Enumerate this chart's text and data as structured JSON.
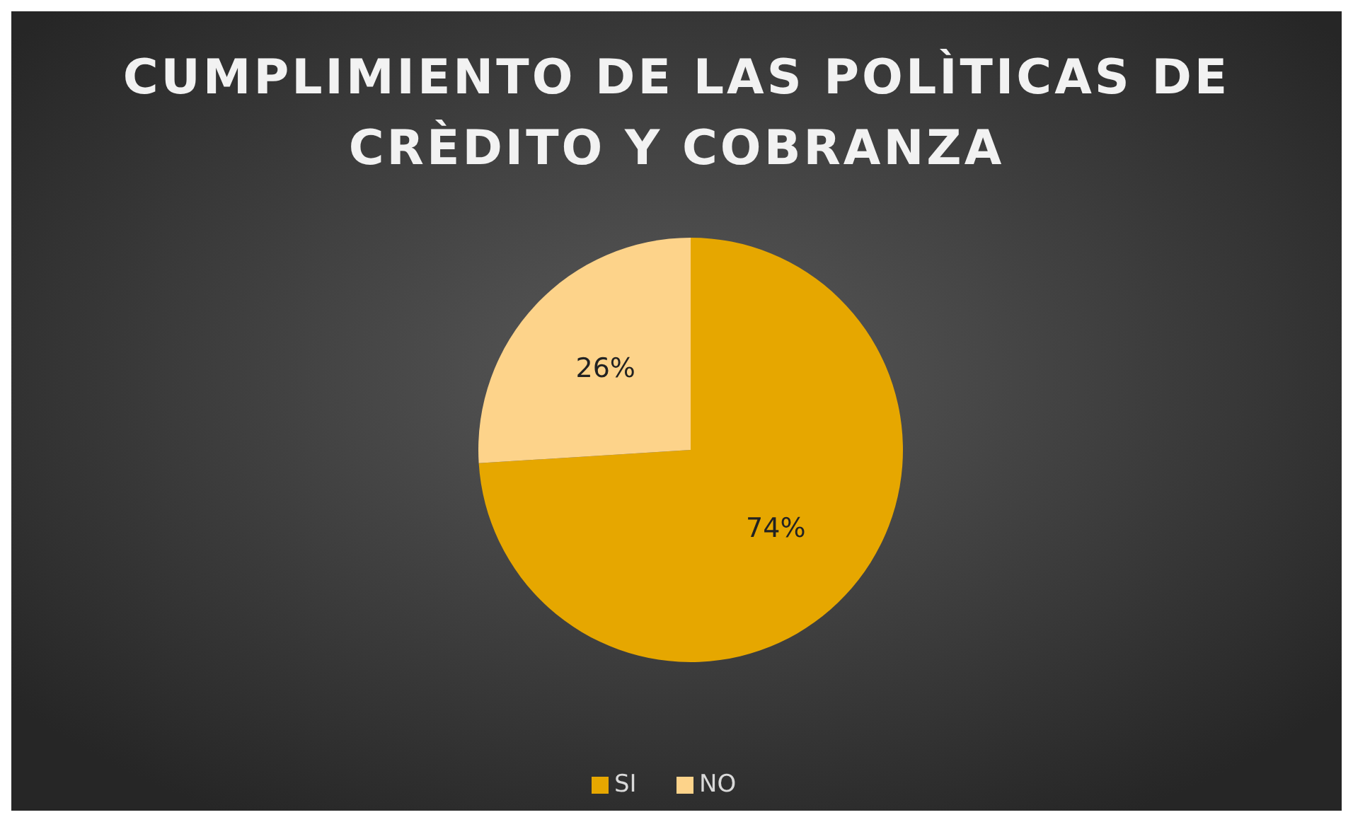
{
  "chart_data": {
    "type": "pie",
    "title": "CUMPLIMIENTO DE LAS POLÌTICAS DE CRÈDITO Y COBRANZA",
    "categories": [
      "SI",
      "NO"
    ],
    "values": [
      74,
      26
    ],
    "colors": [
      "#e6a700",
      "#fdd38a"
    ],
    "value_labels": [
      "74%",
      "26%"
    ],
    "legend": "bottom"
  }
}
